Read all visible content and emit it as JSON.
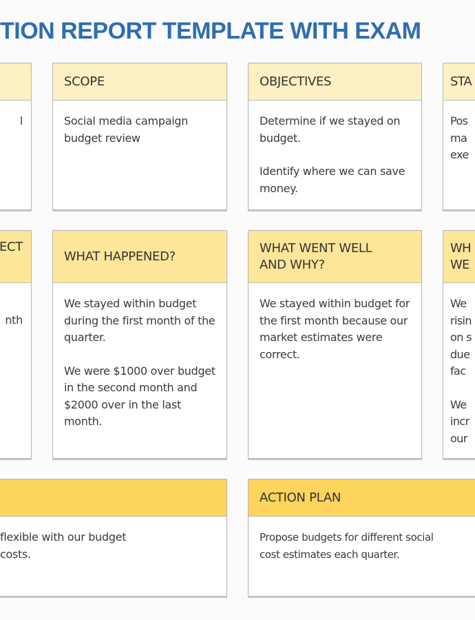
{
  "title": "TION REPORT TEMPLATE WITH EXAM",
  "row1": {
    "left": {
      "body_fragment": "l"
    },
    "scope": {
      "header": "SCOPE",
      "body": [
        "Social media campaign budget review"
      ]
    },
    "objectives": {
      "header": "OBJECTIVES",
      "body": [
        "Determine if we stayed on budget.",
        "Identify where we can save money."
      ]
    },
    "right": {
      "header": "STA",
      "body": [
        "Pos",
        "ma",
        "exe"
      ]
    }
  },
  "row2": {
    "left": {
      "header": "ECT",
      "body_fragment": "nth"
    },
    "what_happened": {
      "header": "WHAT HAPPENED?",
      "body": [
        "We stayed within budget during the first month of the quarter.",
        "We were $1000 over budget in the second month and $2000 over in the last month."
      ]
    },
    "went_well": {
      "header": "WHAT WENT WELL AND WHY?",
      "body": [
        "We stayed within budget for the first month because our market estimates were correct."
      ]
    },
    "right": {
      "header": [
        "WH",
        "WE"
      ],
      "body": [
        [
          "We",
          "risin",
          "on s",
          "due",
          "fac"
        ],
        [
          "We",
          "incr",
          "our"
        ]
      ]
    }
  },
  "row3": {
    "left": {
      "header": "",
      "body": [
        "flexible with our budget",
        "costs."
      ]
    },
    "action_plan": {
      "header": "ACTION PLAN",
      "body": [
        "Propose budgets for different social",
        "cost estimates each quarter."
      ]
    }
  }
}
